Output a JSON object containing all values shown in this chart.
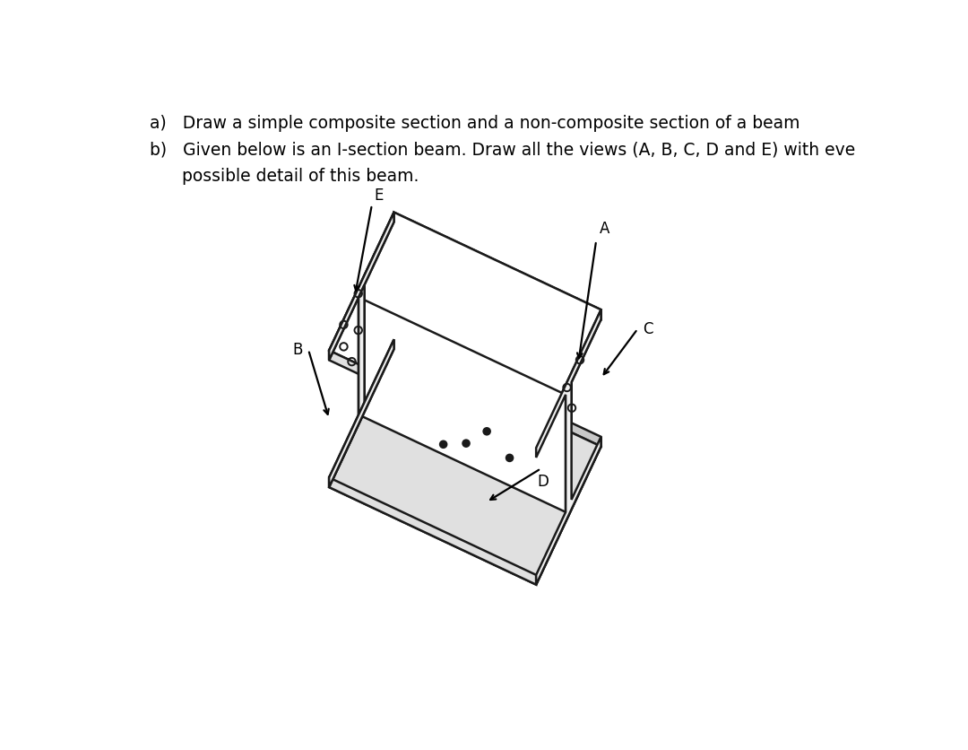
{
  "title_a": "a)   Draw a simple composite section and a non-composite section of a beam",
  "title_b": "b)   Given below is an I-section beam. Draw all the views (A, B, C, D and E) with eve",
  "title_b2": "      possible detail of this beam.",
  "bg_color": "#ffffff",
  "line_color": "#000000",
  "label_E": "E",
  "label_A": "A",
  "label_B": "B",
  "label_C": "C",
  "label_D": "D",
  "face_white": "#ffffff",
  "face_light": "#f0f0f0",
  "face_mid": "#e0e0e0",
  "face_dark": "#c8c8c8",
  "edge_color": "#1a1a1a"
}
